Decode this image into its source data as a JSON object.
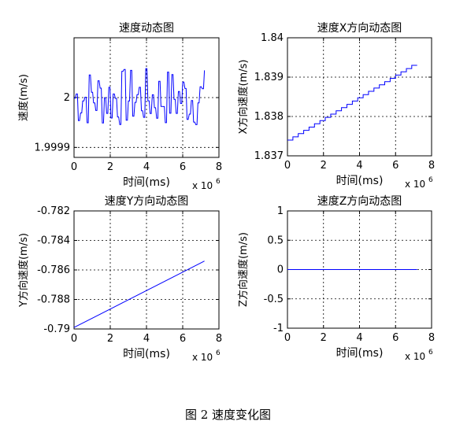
{
  "figure_caption": "图 2  速度变化图",
  "chart_data": [
    {
      "type": "line",
      "title": "速度动态图",
      "xlabel": "时间(ms)",
      "ylabel": "速度(m/s)",
      "xlim": [
        0,
        8
      ],
      "ylim": [
        1.99988,
        2.00012
      ],
      "xticks": [
        "0",
        "2",
        "4",
        "6",
        "8"
      ],
      "yticks": [
        {
          "value": 1.9999,
          "label": "1.9999"
        },
        {
          "value": 2.0,
          "label": "2"
        }
      ],
      "x_exponent": {
        "base": "x 10",
        "exp": "6"
      },
      "grid": true,
      "series": [
        {
          "color": "#0000ff",
          "style": "noisy",
          "x_range": [
            0,
            7.2
          ],
          "center": 2.0,
          "amplitude": 6e-05,
          "segments": 60
        }
      ]
    },
    {
      "type": "line",
      "title": "速度X方向动态图",
      "xlabel": "时间(ms)",
      "ylabel": "X方向速度(m/s)",
      "xlim": [
        0,
        8
      ],
      "ylim": [
        1.837,
        1.84
      ],
      "xticks": [
        "0",
        "2",
        "4",
        "6",
        "8"
      ],
      "yticks": [
        {
          "value": 1.837,
          "label": "1.837"
        },
        {
          "value": 1.838,
          "label": "1.838"
        },
        {
          "value": 1.839,
          "label": "1.839"
        },
        {
          "value": 1.84,
          "label": "1.84"
        }
      ],
      "x_exponent": {
        "base": "x 10",
        "exp": "6"
      },
      "grid": true,
      "series": [
        {
          "color": "#0000ff",
          "style": "stairs",
          "x_range": [
            0,
            7.2
          ],
          "y_start": 1.8374,
          "y_end": 1.8393,
          "steps": 24
        }
      ]
    },
    {
      "type": "line",
      "title": "速度Y方向动态图",
      "xlabel": "时间(ms)",
      "ylabel": "Y方向速度(m/s)",
      "xlim": [
        0,
        8
      ],
      "ylim": [
        -0.79,
        -0.782
      ],
      "xticks": [
        "0",
        "2",
        "4",
        "6",
        "8"
      ],
      "yticks": [
        {
          "value": -0.79,
          "label": "-0.79"
        },
        {
          "value": -0.788,
          "label": "-0.788"
        },
        {
          "value": -0.786,
          "label": "-0.786"
        },
        {
          "value": -0.784,
          "label": "-0.784"
        },
        {
          "value": -0.782,
          "label": "-0.782"
        }
      ],
      "x_exponent": {
        "base": "x 10",
        "exp": "6"
      },
      "grid": true,
      "series": [
        {
          "color": "#0000ff",
          "style": "linear",
          "x_range": [
            0,
            7.2
          ],
          "y_start": -0.7899,
          "y_end": -0.7854
        }
      ]
    },
    {
      "type": "line",
      "title": "速度Z方向动态图",
      "xlabel": "时间(ms)",
      "ylabel": "Z方向速度(m/s)",
      "xlim": [
        0,
        8
      ],
      "ylim": [
        -1,
        1
      ],
      "xticks": [
        "0",
        "2",
        "4",
        "6",
        "8"
      ],
      "yticks": [
        {
          "value": -1,
          "label": "-1"
        },
        {
          "value": -0.5,
          "label": "-0.5"
        },
        {
          "value": 0,
          "label": "0"
        },
        {
          "value": 0.5,
          "label": "0.5"
        },
        {
          "value": 1,
          "label": "1"
        }
      ],
      "x_exponent": {
        "base": "x 10",
        "exp": "6"
      },
      "grid": true,
      "series": [
        {
          "color": "#0000ff",
          "style": "linear",
          "x_range": [
            0,
            7.2
          ],
          "y_start": 0,
          "y_end": 0
        }
      ]
    }
  ]
}
